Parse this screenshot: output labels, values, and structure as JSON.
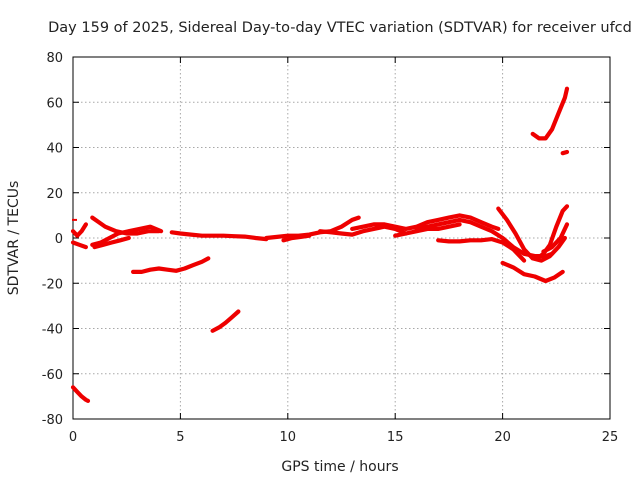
{
  "chart_data": {
    "type": "scatter",
    "title": "Day 159 of 2025, Sidereal Day-to-day VTEC variation (SDTVAR) for receiver ufcd",
    "xlabel": "GPS time / hours",
    "ylabel": "SDTVAR / TECUs",
    "xlim": [
      0,
      25
    ],
    "ylim": [
      -80,
      80
    ],
    "xticks": [
      "0",
      "5",
      "10",
      "15",
      "20",
      "25"
    ],
    "yticks": [
      "-80",
      "-60",
      "-40",
      "-20",
      "0",
      "20",
      "40",
      "60",
      "80"
    ],
    "grid": true,
    "color": "#ee0000",
    "series": [
      {
        "name": "s01",
        "x": [
          0.0,
          0.2,
          0.4,
          0.6,
          0.7
        ],
        "y": [
          -66,
          -68,
          -70,
          -71.5,
          -72
        ]
      },
      {
        "name": "s02",
        "x": [
          0.0,
          0.3,
          0.6
        ],
        "y": [
          -2,
          -3,
          -4
        ]
      },
      {
        "name": "s03",
        "x": [
          0.0,
          0.2,
          0.4,
          0.6
        ],
        "y": [
          3,
          1,
          3,
          6
        ]
      },
      {
        "name": "s04",
        "x": [
          0.9,
          1.2,
          1.5,
          2.0,
          2.5,
          3.0,
          3.5,
          4.0
        ],
        "y": [
          9,
          7,
          5,
          3,
          2,
          2,
          3,
          3
        ]
      },
      {
        "name": "s05",
        "x": [
          0.9,
          1.3,
          1.7,
          2.1,
          2.6,
          3.1,
          3.6,
          4.1
        ],
        "y": [
          -3,
          -2,
          0,
          2,
          3,
          4,
          5,
          3
        ]
      },
      {
        "name": "s06",
        "x": [
          1.0,
          1.4,
          1.8,
          2.2,
          2.6
        ],
        "y": [
          -4,
          -3,
          -2,
          -1,
          0
        ]
      },
      {
        "name": "s07",
        "x": [
          2.8,
          3.2,
          3.6,
          4.0,
          4.4,
          4.8,
          5.2,
          5.6,
          6.0,
          6.3
        ],
        "y": [
          -15,
          -15,
          -14,
          -13.5,
          -14,
          -14.5,
          -13.5,
          -12,
          -10.5,
          -9
        ]
      },
      {
        "name": "s08",
        "x": [
          4.6,
          5.0,
          5.5,
          6.0,
          6.5,
          7.0,
          7.5,
          8.0,
          8.5,
          9.0
        ],
        "y": [
          2.5,
          2,
          1.5,
          1,
          1,
          1,
          0.8,
          0.6,
          0,
          -0.5
        ]
      },
      {
        "name": "s09",
        "x": [
          6.5,
          6.8,
          7.1,
          7.4,
          7.7
        ],
        "y": [
          -41,
          -39.5,
          -37.5,
          -35,
          -32.5
        ]
      },
      {
        "name": "s10",
        "x": [
          9.0,
          9.5,
          10.0,
          10.5,
          11.0,
          11.5,
          12.0,
          12.5,
          13.0,
          13.3
        ],
        "y": [
          0,
          0.5,
          1,
          1,
          1.5,
          2.5,
          3,
          5,
          8,
          9
        ]
      },
      {
        "name": "s11",
        "x": [
          9.8,
          10.2,
          10.6,
          11.0
        ],
        "y": [
          -1,
          0,
          0.5,
          1
        ]
      },
      {
        "name": "s12",
        "x": [
          11.5,
          12.0,
          12.5,
          13.0,
          13.5,
          14.0,
          14.5,
          15.0,
          15.5
        ],
        "y": [
          3,
          2.5,
          2,
          1.5,
          3,
          4,
          5,
          4,
          2
        ]
      },
      {
        "name": "s13",
        "x": [
          13.0,
          13.5,
          14.0,
          14.5,
          15.0,
          15.5,
          16.0,
          16.5,
          17.0,
          17.5,
          18.0,
          18.5,
          19.0,
          19.5,
          19.8
        ],
        "y": [
          4,
          5,
          6,
          6,
          5,
          4,
          5,
          7,
          8,
          9,
          10,
          9,
          7,
          5,
          4
        ]
      },
      {
        "name": "s14",
        "x": [
          15.0,
          15.5,
          16.0,
          16.5,
          17.0,
          17.5,
          18.0
        ],
        "y": [
          1,
          2,
          3,
          4,
          4,
          5,
          6
        ]
      },
      {
        "name": "s15",
        "x": [
          16.0,
          16.5,
          17.0,
          17.5,
          18.0,
          18.5,
          19.0,
          19.5,
          20.0,
          20.5,
          21.0,
          21.5,
          22.0,
          22.3
        ],
        "y": [
          4,
          5,
          6,
          7,
          8,
          7,
          5,
          3,
          0,
          -4,
          -7,
          -8,
          -8,
          -7
        ]
      },
      {
        "name": "s16",
        "x": [
          17.0,
          17.5,
          18.0,
          18.5,
          19.0,
          19.5,
          20.0,
          20.5,
          21.0
        ],
        "y": [
          -1,
          -1.5,
          -1.5,
          -1,
          -1,
          -0.5,
          -2,
          -5,
          -10
        ]
      },
      {
        "name": "s17",
        "x": [
          19.8,
          20.2,
          20.6,
          21.0,
          21.4,
          21.8,
          22.2,
          22.6,
          22.9
        ],
        "y": [
          13,
          8,
          2,
          -5,
          -9,
          -10,
          -8,
          -4,
          0
        ]
      },
      {
        "name": "s18",
        "x": [
          20.0,
          20.5,
          21.0,
          21.5,
          22.0,
          22.4,
          22.8
        ],
        "y": [
          -11,
          -13,
          -16,
          -17,
          -19,
          -17.5,
          -15
        ]
      },
      {
        "name": "s19",
        "x": [
          21.6,
          21.9,
          22.2,
          22.5,
          22.8,
          23.0
        ],
        "y": [
          -9,
          -7,
          -3,
          5,
          12,
          14
        ]
      },
      {
        "name": "s20",
        "x": [
          21.9,
          22.3,
          22.7,
          23.0
        ],
        "y": [
          -6,
          -4,
          0,
          6
        ]
      },
      {
        "name": "s21",
        "x": [
          21.4,
          21.7,
          22.0,
          22.3,
          22.6,
          22.9,
          23.0
        ],
        "y": [
          46,
          44,
          44,
          48,
          55,
          62,
          66
        ]
      },
      {
        "name": "s22",
        "x": [
          22.8,
          23.0
        ],
        "y": [
          37.5,
          38
        ]
      }
    ],
    "points": [
      {
        "x": 0.0,
        "y": 8
      }
    ]
  }
}
